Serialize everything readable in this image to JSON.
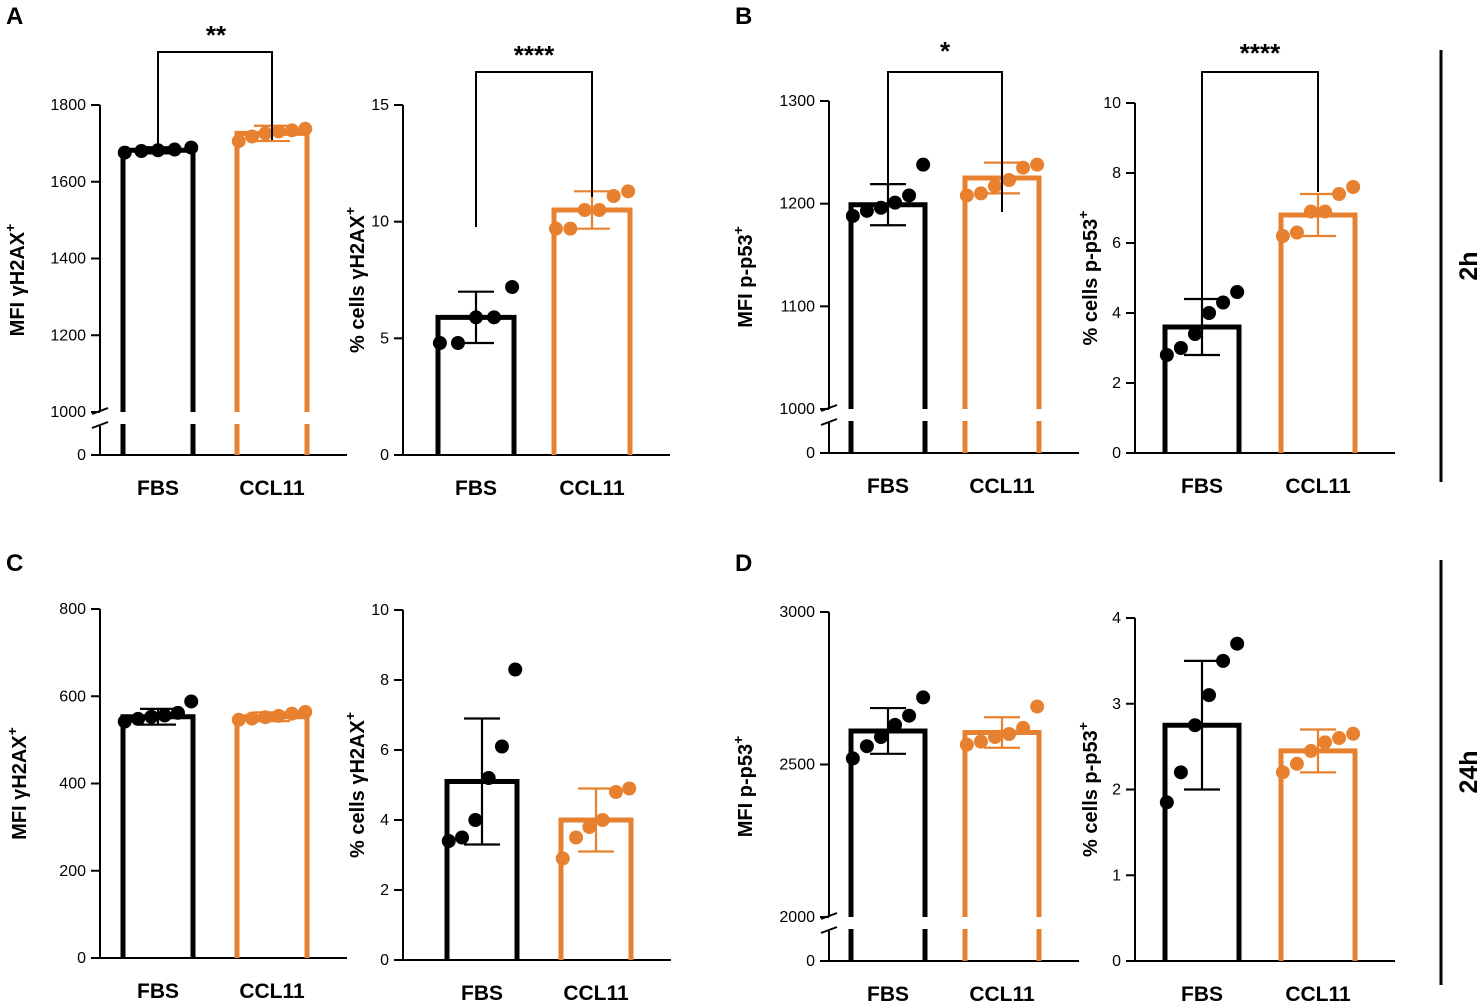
{
  "colors": {
    "FBS": "#000000",
    "CCL11": "#E8812F"
  },
  "time_labels": [
    "2h",
    "24h"
  ],
  "chart_data": [
    {
      "id": "A1",
      "panel": "A",
      "type": "bar",
      "ylabel": "MFI γH2AX",
      "ylabel_sup": "+",
      "categories": [
        "FBS",
        "CCL11"
      ],
      "yticks": [
        "0",
        "1000",
        "1200",
        "1400",
        "1600",
        "1800"
      ],
      "axis_break": [
        0,
        1000
      ],
      "ylim": [
        1000,
        1800
      ],
      "series": [
        {
          "name": "FBS",
          "mean": 1682,
          "sd": 8,
          "points": [
            1676,
            1680,
            1682,
            1684,
            1689
          ]
        },
        {
          "name": "CCL11",
          "mean": 1726,
          "sd": 20,
          "points": [
            1706,
            1718,
            1726,
            1731,
            1734,
            1738
          ]
        }
      ],
      "significance": "**"
    },
    {
      "id": "A2",
      "panel": "A",
      "type": "bar",
      "ylabel": "% cells γH2AX",
      "ylabel_sup": "+",
      "categories": [
        "FBS",
        "CCL11"
      ],
      "yticks": [
        "0",
        "5",
        "10",
        "15"
      ],
      "ylim": [
        0,
        15
      ],
      "series": [
        {
          "name": "FBS",
          "mean": 5.9,
          "sd": 1.1,
          "points": [
            4.8,
            4.8,
            5.9,
            5.9,
            7.2
          ]
        },
        {
          "name": "CCL11",
          "mean": 10.5,
          "sd": 0.8,
          "points": [
            9.7,
            9.7,
            10.5,
            10.5,
            11.1,
            11.3
          ]
        }
      ],
      "significance": "****"
    },
    {
      "id": "B1",
      "panel": "B",
      "type": "bar",
      "ylabel": "MFI p-p53",
      "ylabel_sup": "+",
      "categories": [
        "FBS",
        "CCL11"
      ],
      "yticks": [
        "0",
        "1000",
        "1100",
        "1200",
        "1300"
      ],
      "axis_break": [
        0,
        1000
      ],
      "ylim": [
        1000,
        1300
      ],
      "series": [
        {
          "name": "FBS",
          "mean": 1199,
          "sd": 20,
          "points": [
            1188,
            1193,
            1196,
            1201,
            1208,
            1238
          ]
        },
        {
          "name": "CCL11",
          "mean": 1225,
          "sd": 15,
          "points": [
            1208,
            1210,
            1217,
            1223,
            1235,
            1238
          ]
        }
      ],
      "significance": "*"
    },
    {
      "id": "B2",
      "panel": "B",
      "type": "bar",
      "ylabel": "% cells p-p53",
      "ylabel_sup": "+",
      "categories": [
        "FBS",
        "CCL11"
      ],
      "yticks": [
        "0",
        "2",
        "4",
        "6",
        "8",
        "10"
      ],
      "ylim": [
        0,
        10
      ],
      "series": [
        {
          "name": "FBS",
          "mean": 3.6,
          "sd": 0.8,
          "points": [
            2.8,
            3.0,
            3.4,
            4.0,
            4.3,
            4.6
          ]
        },
        {
          "name": "CCL11",
          "mean": 6.8,
          "sd": 0.6,
          "points": [
            6.2,
            6.3,
            6.9,
            6.9,
            7.4,
            7.6
          ]
        }
      ],
      "significance": "****"
    },
    {
      "id": "C1",
      "panel": "C",
      "type": "bar",
      "ylabel": "MFI γH2AX",
      "ylabel_sup": "+",
      "categories": [
        "FBS",
        "CCL11"
      ],
      "yticks": [
        "0",
        "200",
        "400",
        "600",
        "800"
      ],
      "ylim": [
        0,
        800
      ],
      "series": [
        {
          "name": "FBS",
          "mean": 553,
          "sd": 18,
          "points": [
            542,
            548,
            553,
            556,
            562,
            588
          ]
        },
        {
          "name": "CCL11",
          "mean": 553,
          "sd": 10,
          "points": [
            546,
            549,
            552,
            555,
            560,
            564
          ]
        }
      ]
    },
    {
      "id": "C2",
      "panel": "C",
      "type": "bar",
      "ylabel": "% cells γH2AX",
      "ylabel_sup": "+",
      "categories": [
        "FBS",
        "CCL11"
      ],
      "yticks": [
        "0",
        "2",
        "4",
        "6",
        "8",
        "10"
      ],
      "ylim": [
        0,
        10
      ],
      "series": [
        {
          "name": "FBS",
          "mean": 5.1,
          "sd": 1.8,
          "points": [
            3.4,
            3.5,
            4.0,
            5.2,
            6.1,
            8.3
          ]
        },
        {
          "name": "CCL11",
          "mean": 4.0,
          "sd": 0.9,
          "points": [
            2.9,
            3.5,
            3.8,
            4.0,
            4.8,
            4.9
          ]
        }
      ]
    },
    {
      "id": "D1",
      "panel": "D",
      "type": "bar",
      "ylabel": "MFI p-p53",
      "ylabel_sup": "+",
      "categories": [
        "FBS",
        "CCL11"
      ],
      "yticks": [
        "0",
        "2000",
        "2500",
        "3000"
      ],
      "axis_break": [
        0,
        2000
      ],
      "ylim": [
        2000,
        3000
      ],
      "series": [
        {
          "name": "FBS",
          "mean": 2610,
          "sd": 75,
          "points": [
            2520,
            2560,
            2590,
            2630,
            2660,
            2720
          ]
        },
        {
          "name": "CCL11",
          "mean": 2605,
          "sd": 50,
          "points": [
            2565,
            2575,
            2590,
            2600,
            2620,
            2690
          ]
        }
      ]
    },
    {
      "id": "D2",
      "panel": "D",
      "type": "bar",
      "ylabel": "% cells p-p53",
      "ylabel_sup": "+",
      "categories": [
        "FBS",
        "CCL11"
      ],
      "yticks": [
        "0",
        "1",
        "2",
        "3",
        "4"
      ],
      "ylim": [
        0,
        4
      ],
      "series": [
        {
          "name": "FBS",
          "mean": 2.75,
          "sd": 0.75,
          "points": [
            1.85,
            2.2,
            2.75,
            3.1,
            3.5,
            3.7
          ]
        },
        {
          "name": "CCL11",
          "mean": 2.45,
          "sd": 0.25,
          "points": [
            2.2,
            2.3,
            2.45,
            2.55,
            2.6,
            2.65
          ]
        }
      ]
    }
  ]
}
